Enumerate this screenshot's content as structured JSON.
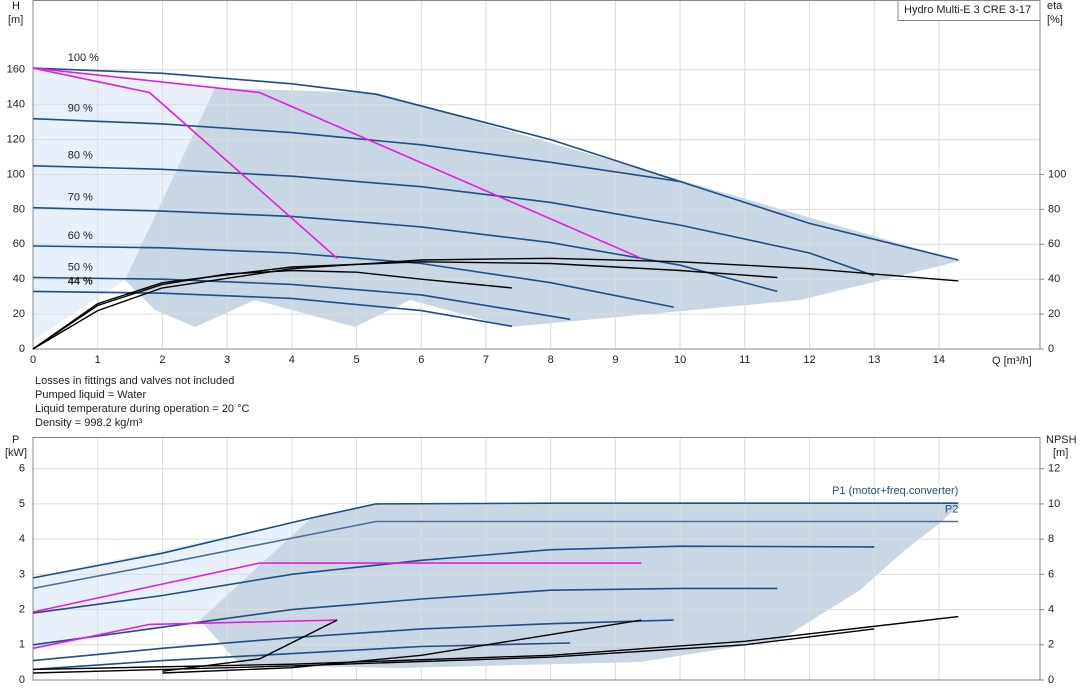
{
  "chart_data": [
    {
      "type": "line",
      "title": "Hydro Multi-E 3 CRE 3-17",
      "y_label": "H",
      "y_unit": "[m]",
      "y2_label": "eta",
      "y2_unit": "[%]",
      "x_label": "Q [m³/h]",
      "xlim": [
        0,
        15.5
      ],
      "ylim": [
        0,
        200
      ],
      "y2lim": [
        0,
        200
      ],
      "xticks": [
        0,
        1,
        2,
        3,
        4,
        5,
        6,
        7,
        8,
        9,
        10,
        11,
        12,
        13,
        14
      ],
      "yticks": [
        0,
        20,
        40,
        60,
        80,
        100,
        120,
        140,
        160
      ],
      "y2ticks": [
        0,
        20,
        40,
        60,
        80,
        100
      ],
      "grid": true,
      "series": [
        {
          "name": "100 %",
          "color": "#1f4e86",
          "x": [
            0,
            2,
            4,
            5.3,
            8,
            10,
            12,
            14.3
          ],
          "values": [
            161,
            158,
            152,
            146,
            120,
            96,
            72,
            51
          ]
        },
        {
          "name": "90 %",
          "color": "#1f4e86",
          "x": [
            0,
            2,
            4,
            6,
            8,
            10
          ],
          "values": [
            132,
            129,
            124,
            117,
            107,
            96
          ]
        },
        {
          "name": "80 %",
          "color": "#1f4e86",
          "x": [
            0,
            2,
            4,
            6,
            8,
            10,
            12,
            13
          ],
          "values": [
            105,
            103,
            99,
            93,
            84,
            71,
            55,
            42
          ]
        },
        {
          "name": "70 %",
          "color": "#1f4e86",
          "x": [
            0,
            2,
            4,
            6,
            8,
            10,
            11.5
          ],
          "values": [
            81,
            79,
            76,
            70,
            61,
            48,
            33
          ]
        },
        {
          "name": "60 %",
          "color": "#1f4e86",
          "x": [
            0,
            2,
            4,
            6,
            8,
            9.9
          ],
          "values": [
            59,
            58,
            55,
            49,
            38,
            24
          ]
        },
        {
          "name": "50 %",
          "color": "#1f4e86",
          "x": [
            0,
            2,
            4,
            6,
            8.3
          ],
          "values": [
            41,
            40,
            37,
            31,
            17
          ]
        },
        {
          "name": "44 %",
          "color": "#1f4e86",
          "x": [
            0,
            2,
            4,
            6,
            7.4
          ],
          "values": [
            33,
            32,
            29,
            22,
            13
          ]
        },
        {
          "color": "#000000",
          "axis": "y2",
          "x": [
            0,
            1,
            2,
            4,
            6,
            8,
            10,
            12,
            14.3
          ],
          "values": [
            0,
            22,
            35,
            46,
            51,
            52,
            50,
            46,
            39
          ]
        },
        {
          "color": "#000000",
          "axis": "y2",
          "x": [
            0,
            1,
            2,
            4,
            6,
            8,
            10,
            11.5
          ],
          "values": [
            0,
            26,
            38,
            47,
            50,
            49,
            45,
            41
          ]
        },
        {
          "color": "#000000",
          "axis": "y2",
          "x": [
            0,
            1,
            2,
            3,
            4,
            5,
            6,
            7.4
          ],
          "values": [
            0,
            25,
            37,
            43,
            45,
            44,
            40,
            35
          ]
        },
        {
          "color": "#e020e0",
          "x": [
            0,
            1.8,
            4.7
          ],
          "values": [
            161,
            147,
            52
          ]
        },
        {
          "color": "#e020e0",
          "x": [
            0,
            3.5,
            9.4
          ],
          "values": [
            161,
            147,
            52
          ]
        }
      ]
    },
    {
      "type": "line",
      "y_label": "P",
      "y_unit": "[kW]",
      "y2_label": "NPSH",
      "y2_unit": "[m]",
      "xlim": [
        0,
        15.5
      ],
      "ylim": [
        0,
        6.9
      ],
      "y2lim": [
        0,
        13.8
      ],
      "yticks": [
        0,
        1,
        2,
        3,
        4,
        5,
        6
      ],
      "y2ticks": [
        0,
        2,
        4,
        6,
        8,
        10,
        12
      ],
      "grid": true,
      "series": [
        {
          "name": "P1 (motor+freq.converter)",
          "color": "#1f4e86",
          "x": [
            0,
            2,
            4.3,
            5.3,
            8,
            10,
            14.3
          ],
          "values": [
            2.9,
            3.6,
            4.6,
            5.0,
            5.02,
            5.02,
            5.02
          ]
        },
        {
          "name": "P2",
          "color": "#4a6e95",
          "x": [
            0,
            2,
            5.3,
            10,
            14.3
          ],
          "values": [
            2.6,
            3.3,
            4.5,
            4.5,
            4.5
          ]
        },
        {
          "color": "#1f4e86",
          "x": [
            0,
            2,
            4,
            6,
            8,
            10,
            13
          ],
          "values": [
            1.9,
            2.4,
            3.0,
            3.4,
            3.7,
            3.8,
            3.78
          ]
        },
        {
          "color": "#1f4e86",
          "x": [
            0,
            2,
            4,
            6,
            8,
            10,
            11.5
          ],
          "values": [
            1.0,
            1.5,
            2.0,
            2.3,
            2.55,
            2.6,
            2.6
          ]
        },
        {
          "color": "#1f4e86",
          "x": [
            0,
            2,
            4,
            6,
            8,
            9.9
          ],
          "values": [
            0.55,
            0.9,
            1.2,
            1.45,
            1.6,
            1.7
          ]
        },
        {
          "color": "#1f4e86",
          "x": [
            0,
            2,
            4,
            6,
            8.3
          ],
          "values": [
            0.3,
            0.55,
            0.75,
            0.95,
            1.05
          ]
        },
        {
          "color": "#e020e0",
          "x": [
            0,
            3.5,
            9.4
          ],
          "values": [
            1.93,
            3.32,
            3.32
          ]
        },
        {
          "color": "#e020e0",
          "x": [
            0,
            1.8,
            4.7
          ],
          "values": [
            0.9,
            1.58,
            1.7
          ]
        },
        {
          "color": "#000000",
          "axis": "y2",
          "x": [
            0,
            4,
            8,
            11,
            14.3
          ],
          "values": [
            0.6,
            0.9,
            1.4,
            2.2,
            3.6
          ]
        },
        {
          "color": "#000000",
          "axis": "y2",
          "x": [
            0,
            4,
            8,
            11,
            13
          ],
          "values": [
            0.4,
            0.8,
            1.3,
            2.0,
            2.9
          ]
        },
        {
          "color": "#000000",
          "axis": "y2",
          "x": [
            2,
            4,
            6,
            9.4
          ],
          "values": [
            0.4,
            0.7,
            1.4,
            3.4
          ]
        },
        {
          "color": "#000000",
          "axis": "y2",
          "x": [
            2,
            3.5,
            4.7
          ],
          "values": [
            0.5,
            1.2,
            3.4
          ]
        }
      ]
    }
  ],
  "notes": [
    "Losses in fittings and valves not included",
    "Pumped liquid = Water",
    "Liquid temperature during operation = 20 °C",
    "Density = 998.2 kg/m³"
  ]
}
